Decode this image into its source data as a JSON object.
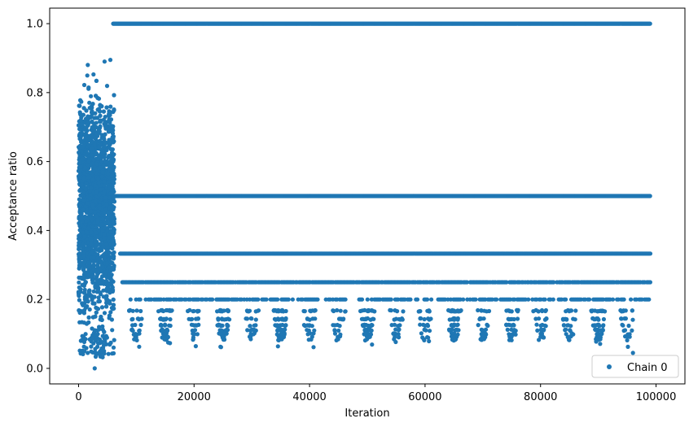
{
  "chart_data": {
    "type": "scatter",
    "xlabel": "Iteration",
    "ylabel": "Acceptance ratio",
    "xlim": [
      -5000,
      105000
    ],
    "ylim": [
      -0.045,
      1.045
    ],
    "xticks": [
      0,
      20000,
      40000,
      60000,
      80000,
      100000
    ],
    "xtick_labels": [
      "0",
      "20000",
      "40000",
      "60000",
      "80000",
      "100000"
    ],
    "yticks": [
      0.0,
      0.2,
      0.4,
      0.6,
      0.8,
      1.0
    ],
    "ytick_labels": [
      "0.0",
      "0.2",
      "0.4",
      "0.6",
      "0.8",
      "1.0"
    ],
    "grid": false,
    "legend_position": "lower-right",
    "marker_color": "#1f77b4",
    "series": [
      {
        "name": "Chain 0",
        "description_points": {
          "burn_in": {
            "x_range": [
              0,
              6200
            ],
            "y_range": [
              0.0,
              0.9
            ]
          },
          "plateau_levels": [
            1.0,
            0.5,
            0.333,
            0.25,
            0.2
          ],
          "plateau_x_range": [
            6000,
            99000
          ],
          "sparse_levels": [
            0.167,
            0.143,
            0.125,
            0.111,
            0.1,
            0.091,
            0.083
          ],
          "outliers": [
            {
              "x": 1600,
              "y": 0.88
            },
            {
              "x": 5500,
              "y": 0.895
            },
            {
              "x": 4500,
              "y": 0.89
            },
            {
              "x": 2800,
              "y": 0.0
            },
            {
              "x": 1000,
              "y": 0.05
            },
            {
              "x": 96000,
              "y": 0.045
            }
          ]
        }
      }
    ]
  }
}
